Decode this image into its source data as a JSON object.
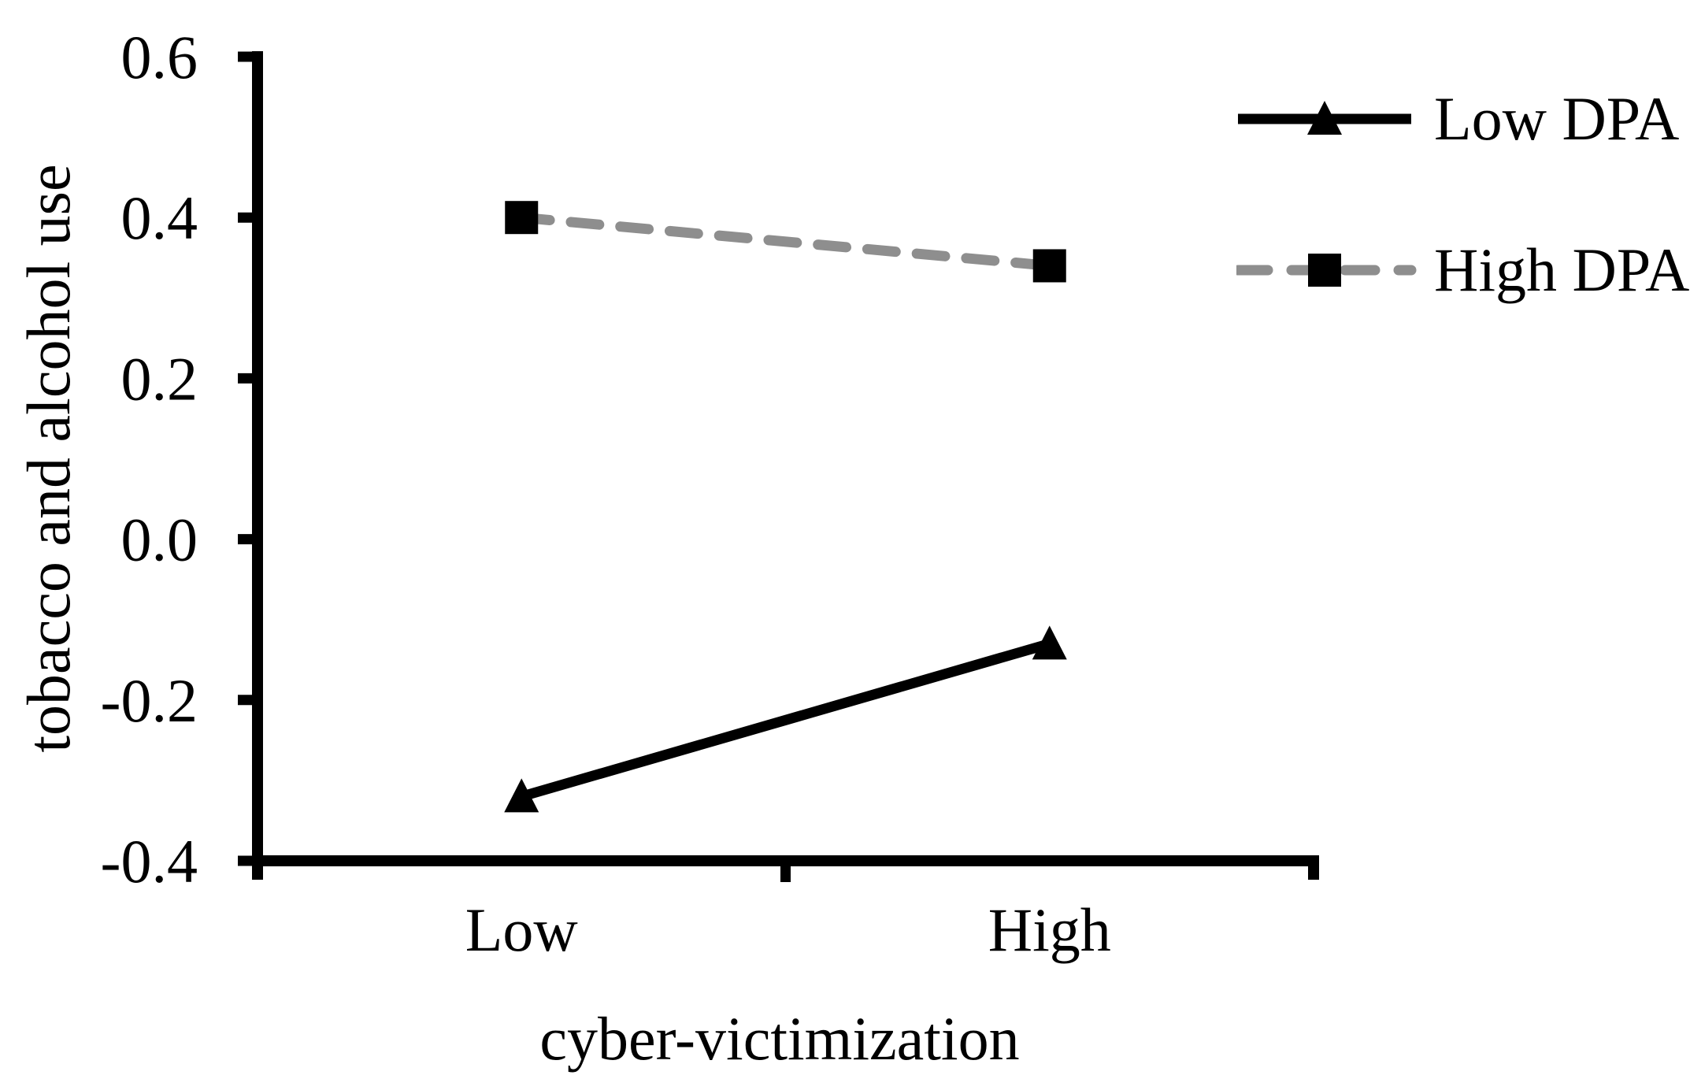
{
  "chart_data": {
    "type": "line",
    "title": "",
    "xlabel": "cyber-victimization",
    "ylabel": "tobacco and alcohol use",
    "categories": [
      "Low",
      "High"
    ],
    "series": [
      {
        "name": "Low DPA",
        "values": [
          -0.32,
          -0.13
        ],
        "line_style": "solid",
        "line_color": "#000000",
        "marker": "triangle",
        "marker_color": "#000000"
      },
      {
        "name": "High DPA",
        "values": [
          0.4,
          0.34
        ],
        "line_style": "dashed",
        "line_color": "#8e8e8e",
        "marker": "square",
        "marker_color": "#000000"
      }
    ],
    "ylim": [
      -0.4,
      0.6
    ],
    "yticks": [
      "0.6",
      "0.4",
      "0.2",
      "0.0",
      "-0.2",
      "-0.4"
    ],
    "xtick_labels": [
      "Low",
      "High"
    ],
    "grid": false,
    "legend_position": "top-right",
    "axis_color": "#000000",
    "background": "#ffffff"
  }
}
